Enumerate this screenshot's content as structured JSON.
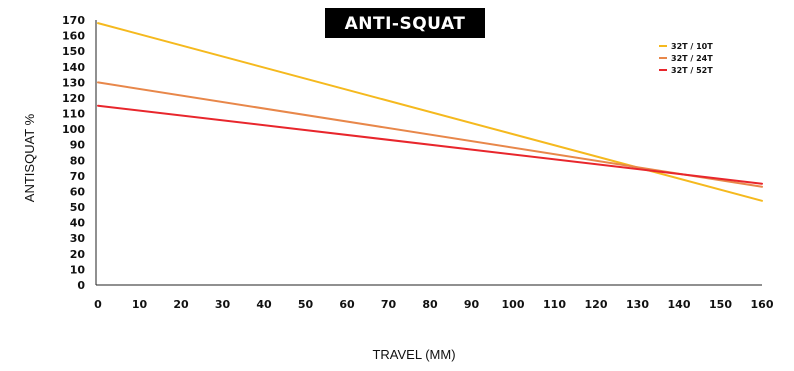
{
  "chart_data": {
    "type": "line",
    "title": "ANTI-SQUAT",
    "xlabel": "TRAVEL (MM)",
    "ylabel": "ANTISQUAT %",
    "xlim": [
      0,
      160
    ],
    "ylim": [
      0,
      170
    ],
    "x_ticks": [
      0,
      10,
      20,
      30,
      40,
      50,
      60,
      70,
      80,
      90,
      100,
      110,
      120,
      130,
      140,
      150,
      160
    ],
    "y_ticks": [
      0,
      10,
      20,
      30,
      40,
      50,
      60,
      70,
      80,
      90,
      100,
      110,
      120,
      130,
      140,
      150,
      160,
      170
    ],
    "grid": false,
    "legend_position": "top-right",
    "series": [
      {
        "name": "32T / 10T",
        "color": "#F5B91E",
        "x": [
          0,
          160
        ],
        "y": [
          168,
          54
        ]
      },
      {
        "name": "32T / 24T",
        "color": "#E8874A",
        "x": [
          0,
          160
        ],
        "y": [
          130,
          63
        ]
      },
      {
        "name": "32T / 52T",
        "color": "#E8262C",
        "x": [
          0,
          160
        ],
        "y": [
          115,
          65
        ]
      }
    ]
  }
}
